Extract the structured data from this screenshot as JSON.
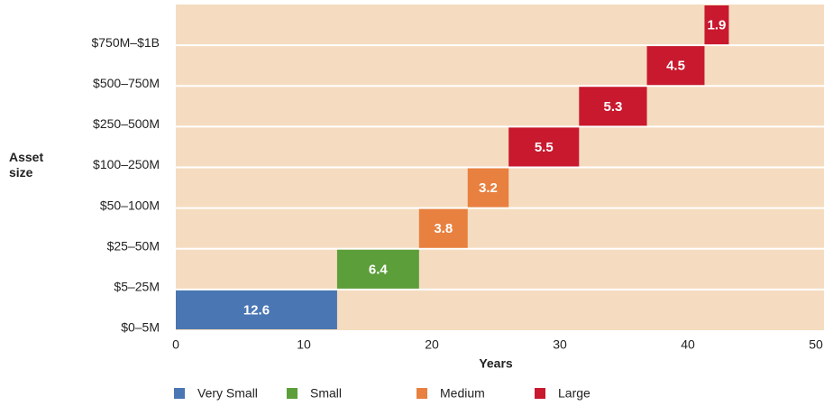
{
  "chart_data": {
    "type": "waterfall-bar",
    "y_label": "Asset size",
    "x_label": "Years",
    "categories": [
      "$0–5M",
      "$5–25M",
      "$25–50M",
      "$50–100M",
      "$100–250M",
      "$250–500M",
      "$500–750M",
      "$750M–$1B"
    ],
    "series": [
      {
        "name": "Very Small",
        "color": "#4a77b4",
        "values": [
          12.6,
          null,
          null,
          null,
          null,
          null,
          null,
          null
        ]
      },
      {
        "name": "Small",
        "color": "#5c9e3a",
        "values": [
          null,
          6.4,
          null,
          null,
          null,
          null,
          null,
          null
        ]
      },
      {
        "name": "Medium",
        "color": "#e8803f",
        "values": [
          null,
          null,
          3.8,
          3.2,
          null,
          null,
          null,
          null
        ]
      },
      {
        "name": "Large",
        "color": "#c8192e",
        "values": [
          null,
          null,
          null,
          null,
          5.5,
          5.3,
          4.5,
          1.9
        ]
      }
    ],
    "xlim": [
      0,
      50
    ],
    "xticks": [
      0,
      10,
      20,
      30,
      40,
      50
    ],
    "background": "#f5dcc0"
  }
}
